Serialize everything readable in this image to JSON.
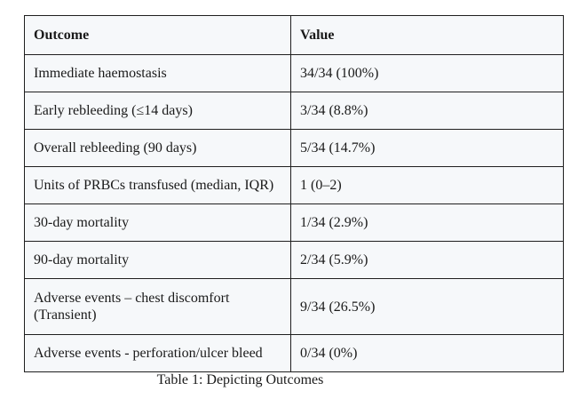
{
  "theme": {
    "cell_background": "#f6f8fa",
    "border_color": "#1f1f1f",
    "text_color": "#1a1a1a",
    "page_background": "#ffffff"
  },
  "table": {
    "columns": [
      "Outcome",
      "Value"
    ],
    "rows": [
      {
        "outcome": "Immediate haemostasis",
        "value": "34/34 (100%)"
      },
      {
        "outcome": "Early rebleeding (≤14 days)",
        "value": "3/34 (8.8%)"
      },
      {
        "outcome": "Overall rebleeding (90 days)",
        "value": "5/34 (14.7%)"
      },
      {
        "outcome": "Units of PRBCs transfused (median, IQR)",
        "value": "1 (0–2)"
      },
      {
        "outcome": "30-day mortality",
        "value": "1/34 (2.9%)"
      },
      {
        "outcome": "90-day mortality",
        "value": "2/34 (5.9%)"
      },
      {
        "outcome": "Adverse events – chest discomfort (Transient)",
        "value": "9/34 (26.5%)"
      },
      {
        "outcome": "Adverse events - perforation/ulcer bleed",
        "value": "0/34 (0%)"
      }
    ],
    "caption": "Table 1: Depicting Outcomes"
  }
}
